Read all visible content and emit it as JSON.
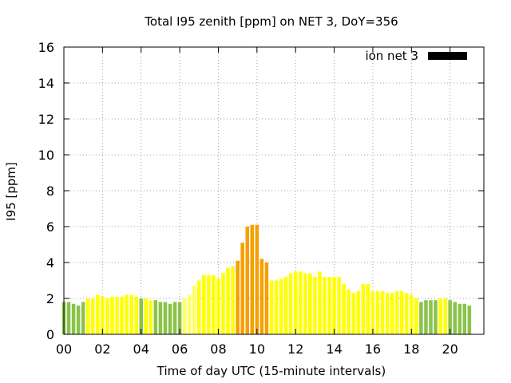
{
  "chart_data": {
    "type": "bar",
    "title": "Total I95 zenith [ppm] on NET 3, DoY=356",
    "xlabel": "Time of day UTC (15-minute intervals)",
    "ylabel": "I95 [ppm]",
    "ylim": [
      0,
      16
    ],
    "yticks": [
      0,
      2,
      4,
      6,
      8,
      10,
      12,
      14,
      16
    ],
    "xlim": [
      0,
      21.75
    ],
    "xticks": [
      0,
      2,
      4,
      6,
      8,
      10,
      12,
      14,
      16,
      18,
      20
    ],
    "xtick_labels": [
      "00",
      "02",
      "04",
      "06",
      "08",
      "10",
      "12",
      "14",
      "16",
      "18",
      "20"
    ],
    "grid": true,
    "legend": {
      "label": "ion net 3",
      "color": "#000000",
      "position": "top-right"
    },
    "colors": {
      "green": "#8bc34a",
      "yellow": "#ffff00",
      "light_yellow": "#ffff66",
      "orange": "#f5a000"
    },
    "interval_hours": 0.25,
    "values": [
      1.8,
      1.8,
      1.7,
      1.6,
      1.8,
      2.0,
      2.0,
      2.2,
      2.1,
      2.0,
      2.1,
      2.1,
      2.1,
      2.2,
      2.2,
      2.1,
      2.0,
      2.0,
      1.9,
      1.9,
      1.8,
      1.8,
      1.7,
      1.8,
      1.8,
      2.0,
      2.2,
      2.7,
      3.0,
      3.3,
      3.3,
      3.3,
      3.1,
      3.4,
      3.7,
      3.8,
      4.1,
      5.1,
      6.0,
      6.1,
      6.1,
      4.2,
      4.0,
      3.0,
      3.0,
      3.1,
      3.2,
      3.4,
      3.5,
      3.5,
      3.4,
      3.4,
      3.2,
      3.5,
      3.2,
      3.2,
      3.2,
      3.2,
      2.8,
      2.5,
      2.3,
      2.4,
      2.8,
      2.8,
      2.4,
      2.4,
      2.4,
      2.3,
      2.3,
      2.4,
      2.4,
      2.3,
      2.2,
      2.0,
      1.8,
      1.9,
      1.9,
      1.9,
      2.0,
      2.0,
      1.9,
      1.8,
      1.7,
      1.7,
      1.6
    ],
    "bar_colors": [
      "green",
      "green",
      "green",
      "green",
      "green",
      "yellow",
      "yellow",
      "yellow",
      "yellow",
      "yellow",
      "yellow",
      "yellow",
      "yellow",
      "yellow",
      "yellow",
      "yellow",
      "green",
      "yellow",
      "yellow",
      "green",
      "green",
      "green",
      "green",
      "green",
      "green",
      "light_yellow",
      "light_yellow",
      "light_yellow",
      "yellow",
      "yellow",
      "yellow",
      "yellow",
      "yellow",
      "yellow",
      "yellow",
      "yellow",
      "orange",
      "orange",
      "orange",
      "orange",
      "orange",
      "orange",
      "orange",
      "yellow",
      "yellow",
      "yellow",
      "yellow",
      "yellow",
      "yellow",
      "yellow",
      "yellow",
      "yellow",
      "yellow",
      "yellow",
      "yellow",
      "yellow",
      "yellow",
      "yellow",
      "yellow",
      "yellow",
      "yellow",
      "yellow",
      "yellow",
      "yellow",
      "yellow",
      "yellow",
      "yellow",
      "yellow",
      "yellow",
      "yellow",
      "yellow",
      "yellow",
      "yellow",
      "yellow",
      "green",
      "green",
      "green",
      "green",
      "yellow",
      "yellow",
      "green",
      "green",
      "green",
      "green",
      "green"
    ]
  }
}
